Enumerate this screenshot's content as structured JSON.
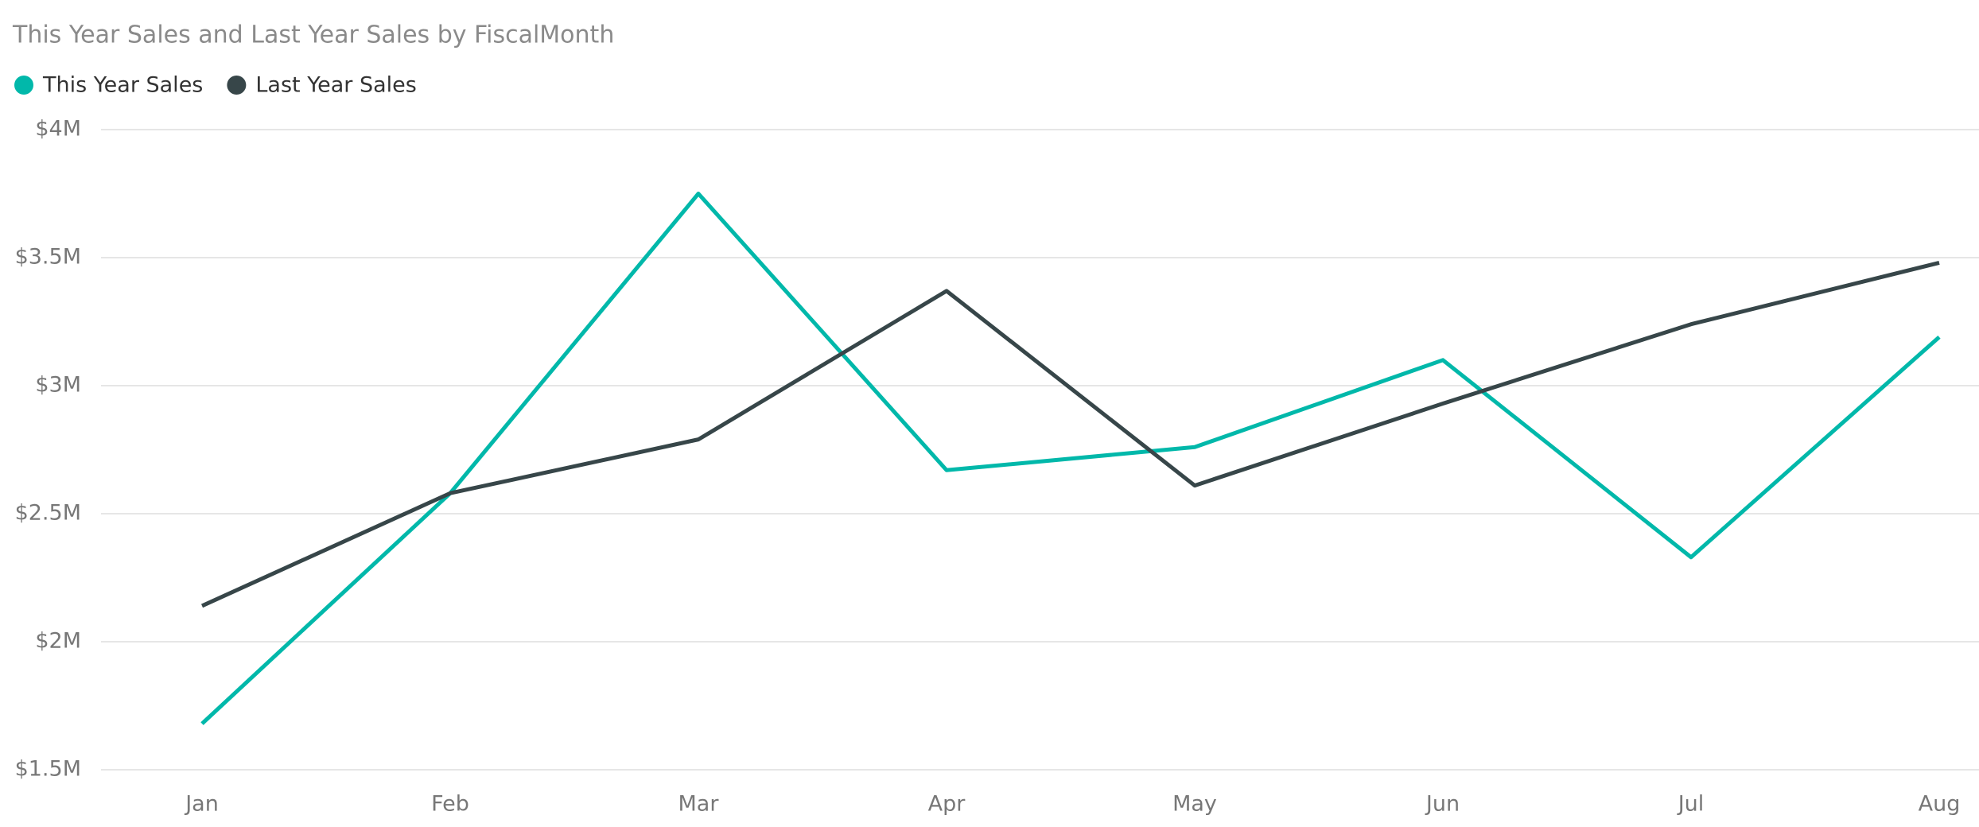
{
  "chart_data": {
    "type": "line",
    "title": "This Year Sales and Last Year Sales by FiscalMonth",
    "categories": [
      "Jan",
      "Feb",
      "Mar",
      "Apr",
      "May",
      "Jun",
      "Jul",
      "Aug"
    ],
    "series": [
      {
        "name": "This Year Sales",
        "color": "#01b8aa",
        "values": [
          1680000,
          2580000,
          3750000,
          2670000,
          2760000,
          3100000,
          2330000,
          3190000
        ]
      },
      {
        "name": "Last Year Sales",
        "color": "#374649",
        "values": [
          2140000,
          2580000,
          2790000,
          3370000,
          2610000,
          2930000,
          3240000,
          3480000
        ]
      }
    ],
    "ylim": [
      1500000,
      4000000
    ],
    "yticks": [
      {
        "value": 1500000,
        "label": "$1.5M"
      },
      {
        "value": 2000000,
        "label": "$2M"
      },
      {
        "value": 2500000,
        "label": "$2.5M"
      },
      {
        "value": 3000000,
        "label": "$3M"
      },
      {
        "value": 3500000,
        "label": "$3.5M"
      },
      {
        "value": 4000000,
        "label": "$4M"
      }
    ],
    "grid": true,
    "legend": "top-left"
  }
}
